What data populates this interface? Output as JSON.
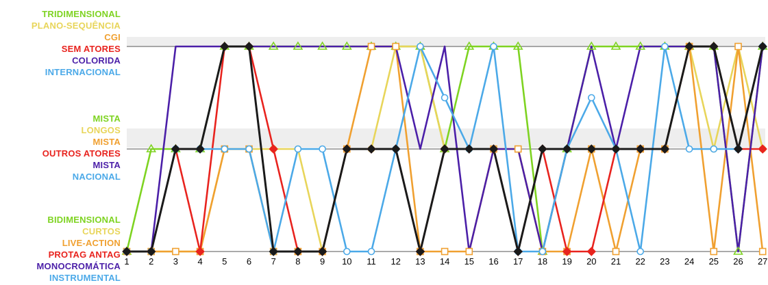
{
  "chart_data": {
    "type": "line",
    "x": [
      1,
      2,
      3,
      4,
      5,
      6,
      7,
      8,
      9,
      10,
      11,
      12,
      13,
      14,
      15,
      16,
      17,
      18,
      19,
      20,
      21,
      22,
      23,
      24,
      25,
      26,
      27
    ],
    "level_groups": [
      {
        "level": 2,
        "labels": [
          {
            "text": "TRIDIMENSIONAL",
            "color": "#7ed321"
          },
          {
            "text": "PLANO-SEQUÊNCIA",
            "color": "#e8d55a"
          },
          {
            "text": "CGI",
            "color": "#f0a030"
          },
          {
            "text": "SEM ATORES",
            "color": "#e8231e"
          },
          {
            "text": "COLORIDA",
            "color": "#4b1fa8"
          },
          {
            "text": "INTERNACIONAL",
            "color": "#4ba9e8"
          }
        ]
      },
      {
        "level": 1,
        "labels": [
          {
            "text": "MISTA",
            "color": "#7ed321"
          },
          {
            "text": "LONGOS",
            "color": "#e8d55a"
          },
          {
            "text": "MISTA",
            "color": "#f0a030"
          },
          {
            "text": "OUTROS ATORES",
            "color": "#e8231e"
          },
          {
            "text": "MISTA",
            "color": "#4b1fa8"
          },
          {
            "text": "NACIONAL",
            "color": "#4ba9e8"
          }
        ]
      },
      {
        "level": 0,
        "labels": [
          {
            "text": "BIDIMENSIONAL",
            "color": "#7ed321"
          },
          {
            "text": "CURTOS",
            "color": "#e8d55a"
          },
          {
            "text": "LIVE-ACTION",
            "color": "#f0a030"
          },
          {
            "text": "PROTAG  ANTAG",
            "color": "#e8231e"
          },
          {
            "text": "MONOCROMÁTICA",
            "color": "#4b1fa8"
          },
          {
            "text": "INSTRUMENTAL",
            "color": "#4ba9e8"
          }
        ]
      }
    ],
    "ylim": [
      0,
      2
    ],
    "series": [
      {
        "color": "#7ed321",
        "marker": "triangle",
        "values": [
          0,
          1,
          1,
          1,
          2,
          2,
          2,
          2,
          2,
          2,
          2,
          2,
          2,
          1,
          2,
          2,
          2,
          0,
          1,
          2,
          2,
          2,
          2,
          2,
          2,
          0,
          2
        ]
      },
      {
        "color": "#e8d55a",
        "marker": "circle",
        "values": [
          0,
          0,
          0,
          0,
          1,
          1,
          1,
          1,
          0,
          1,
          1,
          2,
          2,
          1,
          1,
          1,
          1,
          0,
          1,
          1,
          1,
          1,
          1,
          2,
          1,
          2,
          1
        ]
      },
      {
        "color": "#f0a030",
        "marker": "square",
        "values": [
          0,
          0,
          0,
          0,
          1,
          1,
          0,
          0,
          0,
          1,
          2,
          2,
          0,
          0,
          0,
          1,
          1,
          0,
          0,
          1,
          0,
          1,
          1,
          2,
          0,
          2,
          0
        ]
      },
      {
        "color": "#e8231e",
        "marker": "diamond",
        "values": [
          0,
          0,
          1,
          0,
          2,
          2,
          1,
          0,
          0,
          1,
          1,
          1,
          0,
          1,
          1,
          1,
          0,
          1,
          0,
          0,
          1,
          1,
          1,
          2,
          2,
          1,
          1
        ]
      },
      {
        "color": "#4b1fa8",
        "marker": "none",
        "values": [
          0,
          0,
          2,
          2,
          2,
          2,
          2,
          2,
          2,
          2,
          2,
          2,
          1,
          2,
          0,
          1,
          1,
          0,
          1,
          2,
          1,
          2,
          2,
          2,
          2,
          0,
          2
        ]
      },
      {
        "color": "#4ba9e8",
        "marker": "circle",
        "values": [
          0,
          0,
          1,
          1,
          1,
          1,
          0,
          1,
          1,
          0,
          0,
          1,
          2,
          1.5,
          1,
          2,
          0,
          0,
          1,
          1.5,
          1,
          0,
          2,
          1,
          1,
          1,
          2
        ]
      },
      {
        "color": "#1a1a1a",
        "marker": "diamond",
        "values": [
          0,
          0,
          1,
          1,
          2,
          2,
          0,
          0,
          0,
          1,
          1,
          1,
          0,
          1,
          1,
          1,
          0,
          1,
          1,
          1,
          1,
          1,
          1,
          2,
          2,
          1,
          2
        ]
      }
    ]
  }
}
